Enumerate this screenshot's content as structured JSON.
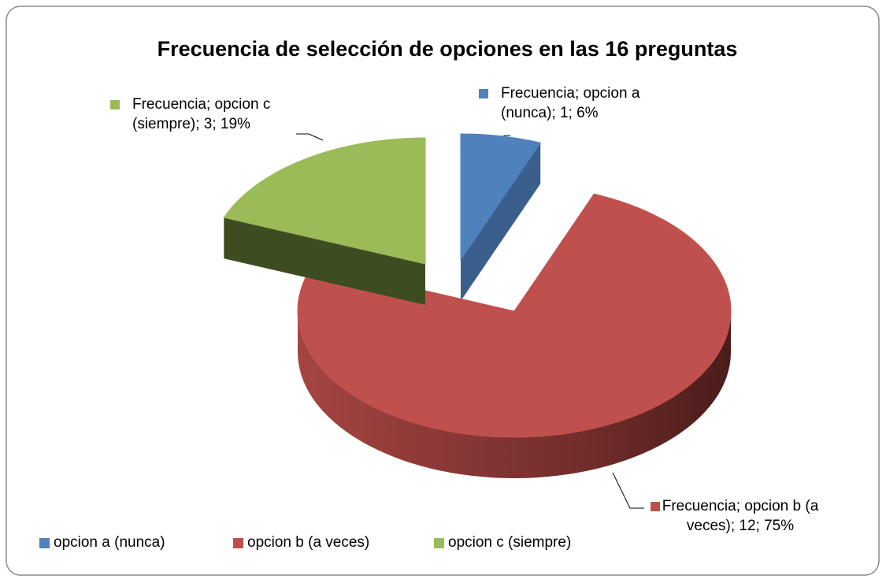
{
  "chart_data": {
    "type": "pie3d",
    "title": "Frecuencia de selección de opciones en las 16 preguntas",
    "series_name": "Frecuencia",
    "categories": [
      "opcion a (nunca)",
      "opcion b (a veces)",
      "opcion c (siempre)"
    ],
    "values": [
      1,
      12,
      3
    ],
    "percentages": [
      6,
      75,
      19
    ],
    "value_labels": [
      "Frecuencia; opcion a (nunca); 1; 6%",
      "Frecuencia; opcion b (a veces); 12; 75%",
      "Frecuencia; opcion c (siempre); 3; 19%"
    ],
    "colors": [
      "#4f81bd",
      "#c0504d",
      "#9bbb59"
    ],
    "side_colors": [
      "#3a5f8c",
      "#8e3a38",
      "#3e4c22"
    ],
    "legend": "bottom"
  }
}
